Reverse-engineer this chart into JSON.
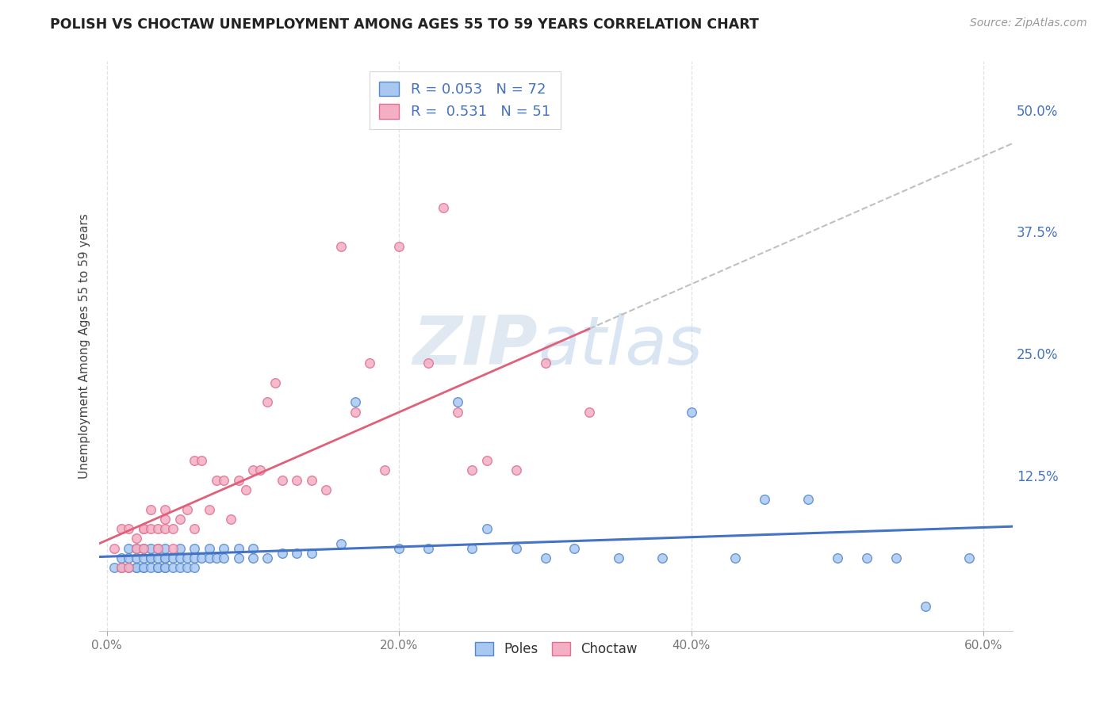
{
  "title": "POLISH VS CHOCTAW UNEMPLOYMENT AMONG AGES 55 TO 59 YEARS CORRELATION CHART",
  "source": "Source: ZipAtlas.com",
  "ylabel": "Unemployment Among Ages 55 to 59 years",
  "xlim": [
    -0.005,
    0.62
  ],
  "ylim": [
    -0.035,
    0.55
  ],
  "xtick_labels": [
    "0.0%",
    "20.0%",
    "40.0%",
    "60.0%"
  ],
  "xtick_vals": [
    0.0,
    0.2,
    0.4,
    0.6
  ],
  "ytick_labels": [
    "12.5%",
    "25.0%",
    "37.5%",
    "50.0%"
  ],
  "ytick_vals": [
    0.125,
    0.25,
    0.375,
    0.5
  ],
  "poles_color": "#a8c8f0",
  "choctaw_color": "#f4afc4",
  "poles_edge_color": "#5588cc",
  "choctaw_edge_color": "#e07090",
  "poles_trend_color": "#4472c4",
  "choctaw_trend_color": "#e0607a",
  "dashed_color": "#c0c0c0",
  "R_poles": 0.053,
  "N_poles": 72,
  "R_choctaw": 0.531,
  "N_choctaw": 51,
  "watermark_zip": "ZIP",
  "watermark_atlas": "atlas",
  "background_color": "#ffffff",
  "grid_color": "#d8e0ec",
  "legend_poles_label": "Poles",
  "legend_choctaw_label": "Choctaw",
  "poles_x": [
    0.005,
    0.01,
    0.01,
    0.015,
    0.015,
    0.015,
    0.02,
    0.02,
    0.02,
    0.02,
    0.025,
    0.025,
    0.025,
    0.025,
    0.03,
    0.03,
    0.03,
    0.03,
    0.035,
    0.035,
    0.035,
    0.035,
    0.04,
    0.04,
    0.04,
    0.04,
    0.04,
    0.045,
    0.045,
    0.05,
    0.05,
    0.05,
    0.055,
    0.055,
    0.06,
    0.06,
    0.06,
    0.065,
    0.07,
    0.07,
    0.075,
    0.08,
    0.08,
    0.09,
    0.09,
    0.1,
    0.1,
    0.11,
    0.12,
    0.13,
    0.14,
    0.16,
    0.17,
    0.2,
    0.22,
    0.24,
    0.25,
    0.26,
    0.28,
    0.3,
    0.32,
    0.35,
    0.38,
    0.4,
    0.43,
    0.45,
    0.48,
    0.5,
    0.52,
    0.54,
    0.56,
    0.59
  ],
  "poles_y": [
    0.03,
    0.03,
    0.04,
    0.03,
    0.04,
    0.05,
    0.03,
    0.03,
    0.04,
    0.05,
    0.03,
    0.04,
    0.05,
    0.03,
    0.03,
    0.04,
    0.04,
    0.05,
    0.03,
    0.03,
    0.04,
    0.05,
    0.03,
    0.03,
    0.04,
    0.04,
    0.05,
    0.03,
    0.04,
    0.03,
    0.04,
    0.05,
    0.03,
    0.04,
    0.03,
    0.04,
    0.05,
    0.04,
    0.04,
    0.05,
    0.04,
    0.04,
    0.05,
    0.04,
    0.05,
    0.04,
    0.05,
    0.04,
    0.045,
    0.045,
    0.045,
    0.055,
    0.2,
    0.05,
    0.05,
    0.2,
    0.05,
    0.07,
    0.05,
    0.04,
    0.05,
    0.04,
    0.04,
    0.19,
    0.04,
    0.1,
    0.1,
    0.04,
    0.04,
    0.04,
    -0.01,
    0.04
  ],
  "choctaw_x": [
    0.005,
    0.01,
    0.01,
    0.015,
    0.015,
    0.02,
    0.02,
    0.025,
    0.025,
    0.025,
    0.03,
    0.03,
    0.035,
    0.035,
    0.04,
    0.04,
    0.04,
    0.045,
    0.045,
    0.05,
    0.055,
    0.06,
    0.06,
    0.065,
    0.07,
    0.075,
    0.08,
    0.085,
    0.09,
    0.095,
    0.1,
    0.105,
    0.11,
    0.115,
    0.12,
    0.13,
    0.14,
    0.15,
    0.16,
    0.17,
    0.18,
    0.19,
    0.2,
    0.22,
    0.23,
    0.24,
    0.25,
    0.26,
    0.28,
    0.3,
    0.33
  ],
  "choctaw_y": [
    0.05,
    0.03,
    0.07,
    0.03,
    0.07,
    0.06,
    0.05,
    0.07,
    0.07,
    0.05,
    0.07,
    0.09,
    0.07,
    0.05,
    0.08,
    0.07,
    0.09,
    0.07,
    0.05,
    0.08,
    0.09,
    0.14,
    0.07,
    0.14,
    0.09,
    0.12,
    0.12,
    0.08,
    0.12,
    0.11,
    0.13,
    0.13,
    0.2,
    0.22,
    0.12,
    0.12,
    0.12,
    0.11,
    0.36,
    0.19,
    0.24,
    0.13,
    0.36,
    0.24,
    0.4,
    0.19,
    0.13,
    0.14,
    0.13,
    0.24,
    0.19
  ]
}
